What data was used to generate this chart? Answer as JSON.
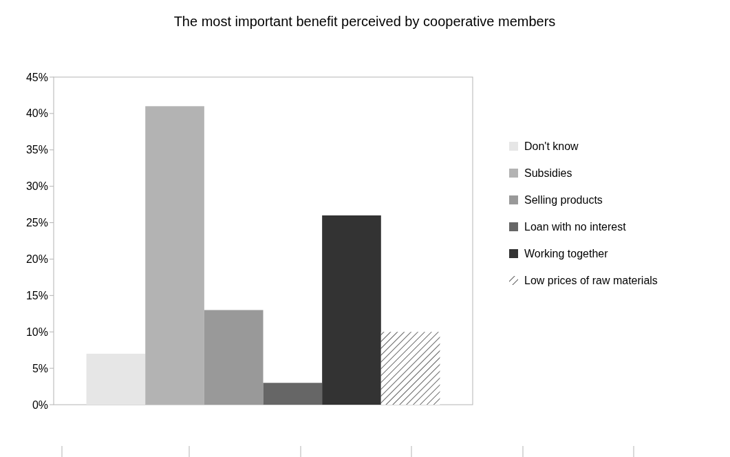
{
  "chart_data": {
    "type": "bar",
    "title": "The most important benefit perceived by cooperative members",
    "categories": [
      null
    ],
    "series": [
      {
        "name": "Don't know",
        "color": "#e6e6e6",
        "values": [
          7
        ]
      },
      {
        "name": "Subsidies",
        "color": "#b3b3b3",
        "values": [
          41
        ]
      },
      {
        "name": "Selling products",
        "color": "#999999",
        "values": [
          13
        ]
      },
      {
        "name": "Loan with no interest",
        "color": "#666666",
        "values": [
          3
        ]
      },
      {
        "name": "Working together",
        "color": "#333333",
        "values": [
          26
        ]
      },
      {
        "name": "Low prices of raw materials",
        "color": "#333333",
        "values": [
          10
        ]
      }
    ],
    "ylim": [
      0,
      45
    ],
    "yticks": [
      {
        "value": 0,
        "label": "0%"
      },
      {
        "value": 5,
        "label": "5%"
      },
      {
        "value": 10,
        "label": "10%"
      },
      {
        "value": 15,
        "label": "15%"
      },
      {
        "value": 20,
        "label": "20%"
      },
      {
        "value": 25,
        "label": "25%"
      },
      {
        "value": 30,
        "label": "30%"
      },
      {
        "value": 35,
        "label": "35%"
      },
      {
        "value": 40,
        "label": "40%"
      },
      {
        "value": 45,
        "label": "45%"
      }
    ],
    "legend": "right",
    "grid": false
  }
}
